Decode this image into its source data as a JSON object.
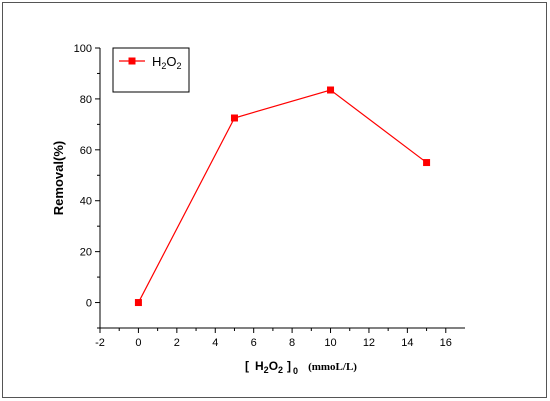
{
  "chart_data": {
    "type": "line",
    "xlabel": {
      "bracket_open": "[",
      "main": "H",
      "sub1": "2",
      "mid": "O",
      "sub2": "2",
      "bracket_close": "]",
      "sub0": "0",
      "unit": "(mmoL/L)"
    },
    "ylabel": "Removal(%)",
    "xlim": [
      -2,
      17
    ],
    "ylim": [
      -10,
      100
    ],
    "xticks": [
      -2,
      0,
      2,
      4,
      6,
      8,
      10,
      12,
      14,
      16
    ],
    "yticks": [
      0,
      20,
      40,
      60,
      80,
      100
    ],
    "series": [
      {
        "name": {
          "main": "H",
          "sub1": "2",
          "mid": "O",
          "sub2": "2"
        },
        "color": "#ff0000",
        "marker": "square",
        "x": [
          0,
          5,
          10,
          15
        ],
        "y": [
          0,
          72.5,
          83.5,
          55
        ]
      }
    ],
    "legend_position": "top-left",
    "grid": false
  }
}
